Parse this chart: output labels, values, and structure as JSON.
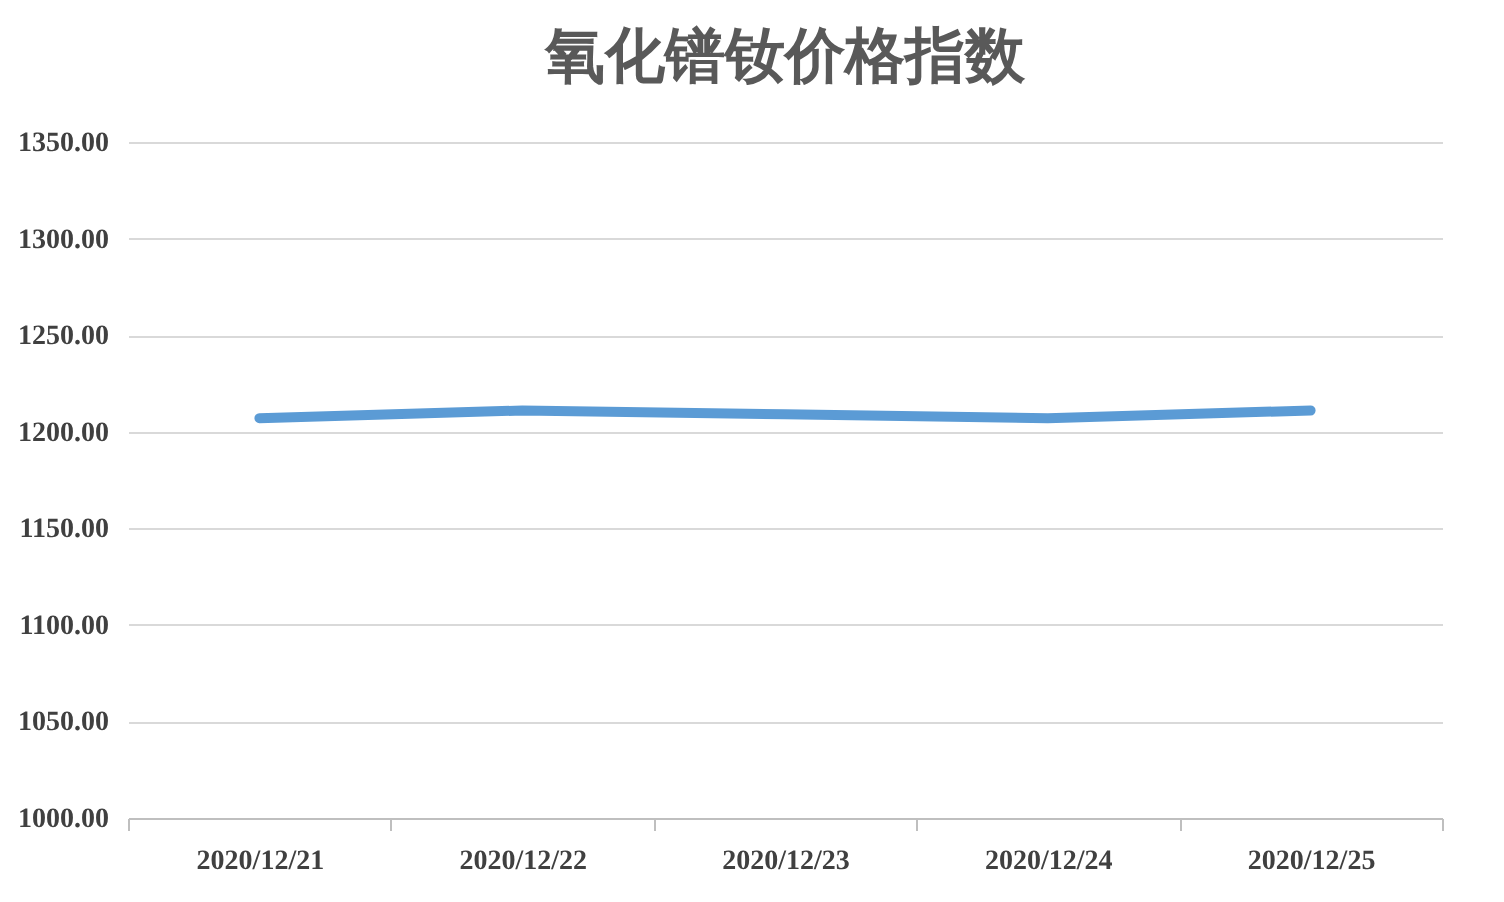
{
  "chart_data": {
    "type": "line",
    "title": "氧化镨钕价格指数",
    "categories": [
      "2020/12/21",
      "2020/12/22",
      "2020/12/23",
      "2020/12/24",
      "2020/12/25"
    ],
    "series": [
      {
        "color": "#5b9bd5",
        "values": [
          1207,
          1211,
          1209,
          1207,
          1211
        ]
      }
    ],
    "ylim": [
      1000,
      1350
    ],
    "yticks": [
      {
        "value": 1000,
        "label": "1000.00"
      },
      {
        "value": 1050,
        "label": "1050.00"
      },
      {
        "value": 1100,
        "label": "1100.00"
      },
      {
        "value": 1150,
        "label": "1150.00"
      },
      {
        "value": 1200,
        "label": "1200.00"
      },
      {
        "value": 1250,
        "label": "1250.00"
      },
      {
        "value": 1300,
        "label": "1300.00"
      },
      {
        "value": 1350,
        "label": "1350.00"
      }
    ],
    "grid": "y",
    "marker": "none",
    "line_style": "solid"
  }
}
